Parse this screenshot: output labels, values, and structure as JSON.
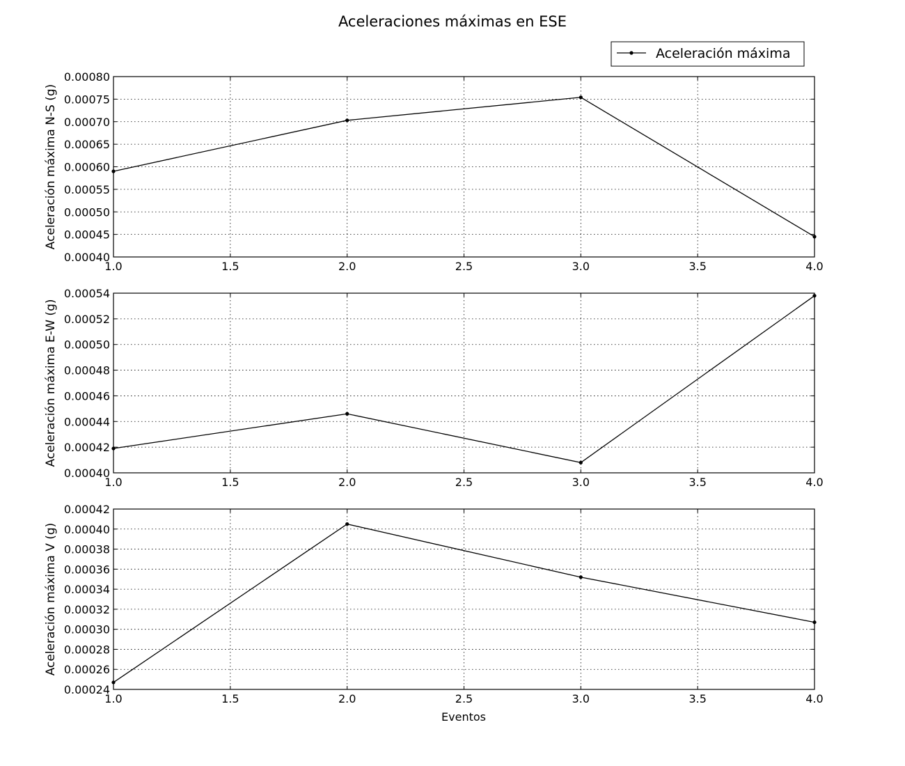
{
  "chart_data": {
    "type": "line",
    "title": "Aceleraciones máximas en ESE",
    "legend": {
      "label": "Aceleración máxima",
      "placement": "top-right"
    },
    "grid": true,
    "line_color": "#000000",
    "xlabel": "Eventos",
    "panels": [
      {
        "ylabel": "Aceleración máxima N-S (g)",
        "x": [
          1.0,
          2.0,
          3.0,
          4.0
        ],
        "y": [
          0.00059,
          0.000703,
          0.000754,
          0.000445
        ],
        "xlim": [
          1.0,
          4.0
        ],
        "ylim": [
          0.0004,
          0.0008
        ],
        "x_ticks": [
          "1.0",
          "1.5",
          "2.0",
          "2.5",
          "3.0",
          "3.5",
          "4.0"
        ],
        "y_ticks": [
          "0.00040",
          "0.00045",
          "0.00050",
          "0.00055",
          "0.00060",
          "0.00065",
          "0.00070",
          "0.00075",
          "0.00080"
        ]
      },
      {
        "ylabel": "Aceleración máxima E-W (g)",
        "x": [
          1.0,
          2.0,
          3.0,
          4.0
        ],
        "y": [
          0.000419,
          0.000446,
          0.000408,
          0.000538
        ],
        "xlim": [
          1.0,
          4.0
        ],
        "ylim": [
          0.0004,
          0.00054
        ],
        "x_ticks": [
          "1.0",
          "1.5",
          "2.0",
          "2.5",
          "3.0",
          "3.5",
          "4.0"
        ],
        "y_ticks": [
          "0.00040",
          "0.00042",
          "0.00044",
          "0.00046",
          "0.00048",
          "0.00050",
          "0.00052",
          "0.00054"
        ]
      },
      {
        "ylabel": "Aceleración máxima V (g)",
        "x": [
          1.0,
          2.0,
          3.0,
          4.0
        ],
        "y": [
          0.000247,
          0.000405,
          0.000352,
          0.000307
        ],
        "xlim": [
          1.0,
          4.0
        ],
        "ylim": [
          0.00024,
          0.00042
        ],
        "x_ticks": [
          "1.0",
          "1.5",
          "2.0",
          "2.5",
          "3.0",
          "3.5",
          "4.0"
        ],
        "y_ticks": [
          "0.00024",
          "0.00026",
          "0.00028",
          "0.00030",
          "0.00032",
          "0.00034",
          "0.00036",
          "0.00038",
          "0.00040",
          "0.00042"
        ]
      }
    ]
  }
}
